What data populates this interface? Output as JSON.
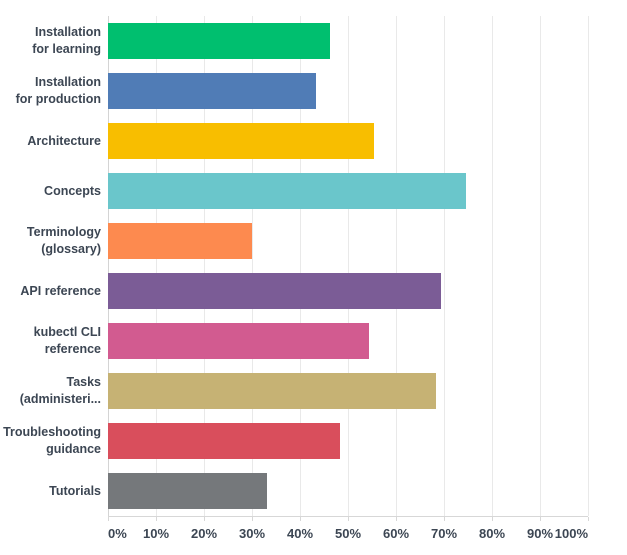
{
  "chart_data": {
    "type": "bar",
    "orientation": "horizontal",
    "title": "",
    "xlabel": "",
    "ylabel": "",
    "xlim": [
      0,
      100
    ],
    "unit": "%",
    "grid": "vertical",
    "legend": "none",
    "categories": [
      "Installation for learning",
      "Installation for production",
      "Architecture",
      "Concepts",
      "Terminology (glossary)",
      "API reference",
      "kubectl CLI reference",
      "Tasks (administeri...",
      "Troubleshooting guidance",
      "Tutorials"
    ],
    "category_label_lines": [
      [
        "Installation",
        "for learning"
      ],
      [
        "Installation",
        "for production"
      ],
      [
        "Architecture"
      ],
      [
        "Concepts"
      ],
      [
        "Terminology",
        "(glossary)"
      ],
      [
        "API reference"
      ],
      [
        "kubectl CLI",
        "reference"
      ],
      [
        "Tasks",
        "(administeri..."
      ],
      [
        "Troubleshooting",
        "guidance"
      ],
      [
        "Tutorials"
      ]
    ],
    "values": [
      46.3,
      43.3,
      55.4,
      74.5,
      30.1,
      69.4,
      54.4,
      68.3,
      48.3,
      33.1
    ],
    "bar_colors": [
      "#00BF6F",
      "#507CB6",
      "#F8BE00",
      "#6AC6CB",
      "#FD8A4F",
      "#7B5C96",
      "#D25B90",
      "#C6B274",
      "#D94E5C",
      "#75787B"
    ],
    "x_ticks": [
      "0%",
      "10%",
      "20%",
      "30%",
      "40%",
      "50%",
      "60%",
      "70%",
      "80%",
      "90%",
      "100%"
    ]
  },
  "style": {
    "background": "#ffffff",
    "grid_color": "#e9e9e9",
    "axis_line_color": "#d7d7d7",
    "label_color": "#3c4653"
  }
}
